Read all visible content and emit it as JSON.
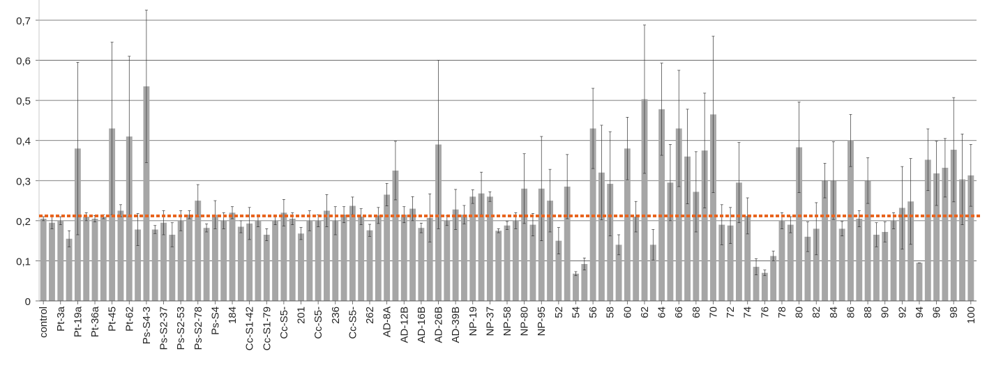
{
  "chart_data": {
    "type": "bar",
    "categories": [
      "control",
      null,
      "Pt-3a",
      null,
      "Pt-19a",
      null,
      "Pt-36a",
      null,
      "Pt-45",
      null,
      "Pt-62",
      null,
      "Ps-S4-3",
      null,
      "Ps-S2-37",
      null,
      "Ps-S2-53",
      null,
      "Ps-S2-78",
      null,
      "Ps-S4",
      null,
      "184",
      null,
      "Cc-S1-42",
      null,
      "Cc-S1-79",
      null,
      "Cc-S5-",
      null,
      "201",
      null,
      "Cc-S5-",
      null,
      "236",
      null,
      "Cc-S5-",
      null,
      "262",
      null,
      "AD-8A",
      null,
      "AD-12B",
      null,
      "AD-16B",
      null,
      "AD-26B",
      null,
      "AD-39B",
      null,
      "NP-19",
      null,
      "NP-37",
      null,
      "NP-58",
      null,
      "NP-80",
      null,
      "NP-95",
      null,
      "52",
      null,
      "54",
      null,
      "56",
      null,
      "58",
      null,
      "60",
      null,
      "62",
      null,
      "64",
      null,
      "66",
      null,
      "68",
      null,
      "70",
      null,
      "72",
      null,
      "74",
      null,
      "76",
      null,
      "78",
      null,
      "80",
      null,
      "82",
      null,
      "84",
      null,
      "86",
      null,
      "88",
      null,
      "90",
      null,
      "92",
      null,
      "94",
      null,
      "96",
      null,
      "98",
      null,
      "100"
    ],
    "values": [
      0.205,
      0.195,
      0.2,
      0.155,
      0.38,
      0.21,
      0.205,
      0.21,
      0.43,
      0.225,
      0.41,
      0.178,
      0.535,
      0.178,
      0.195,
      0.165,
      0.2,
      0.215,
      0.25,
      0.182,
      0.215,
      0.2,
      0.22,
      0.185,
      0.193,
      0.2,
      0.165,
      0.2,
      0.22,
      0.205,
      0.168,
      0.2,
      0.2,
      0.225,
      0.2,
      0.215,
      0.237,
      0.21,
      0.176,
      0.213,
      0.265,
      0.325,
      0.215,
      0.23,
      0.182,
      0.207,
      0.39,
      0.2,
      0.228,
      0.215,
      0.26,
      0.268,
      0.26,
      0.175,
      0.188,
      0.2,
      0.28,
      0.19,
      0.28,
      0.25,
      0.15,
      0.285,
      0.068,
      0.092,
      0.43,
      0.32,
      0.292,
      0.14,
      0.38,
      0.21,
      0.503,
      0.14,
      0.478,
      0.295,
      0.43,
      0.36,
      0.272,
      0.375,
      0.465,
      0.19,
      0.188,
      0.295,
      0.212,
      0.085,
      0.07,
      0.112,
      0.2,
      0.19,
      0.383,
      0.16,
      0.18,
      0.3,
      0.3,
      0.18,
      0.4,
      0.205,
      0.3,
      0.165,
      0.172,
      0.2,
      0.232,
      0.248,
      0.095,
      0.352,
      0.318,
      0.332,
      0.377,
      0.303,
      0.313
    ],
    "errors": [
      0.005,
      0.015,
      0.01,
      0.02,
      0.215,
      0.01,
      0.008,
      0.005,
      0.215,
      0.015,
      0.2,
      0.04,
      0.19,
      0.01,
      0.03,
      0.03,
      0.025,
      0.01,
      0.04,
      0.01,
      0.035,
      0.02,
      0.015,
      0.015,
      0.04,
      0.015,
      0.015,
      0.01,
      0.033,
      0.015,
      0.015,
      0.025,
      0.015,
      0.04,
      0.035,
      0.02,
      0.022,
      0.02,
      0.015,
      0.02,
      0.028,
      0.073,
      0.02,
      0.03,
      0.012,
      0.06,
      0.21,
      0.012,
      0.05,
      0.023,
      0.017,
      0.053,
      0.012,
      0.005,
      0.01,
      0.02,
      0.087,
      0.028,
      0.13,
      0.078,
      0.033,
      0.08,
      0.005,
      0.015,
      0.1,
      0.118,
      0.13,
      0.025,
      0.078,
      0.038,
      0.185,
      0.038,
      0.115,
      0.095,
      0.145,
      0.118,
      0.1,
      0.143,
      0.195,
      0.05,
      0.045,
      0.1,
      0.045,
      0.02,
      0.007,
      0.012,
      0.02,
      0.02,
      0.113,
      0.037,
      0.065,
      0.043,
      0.097,
      0.018,
      0.065,
      0.02,
      0.057,
      0.03,
      0.025,
      0.02,
      0.103,
      0.107,
      0,
      0.077,
      0.08,
      0.073,
      0.13,
      0.113,
      0.077
    ],
    "color": "#a6a6a6",
    "reference_line": {
      "value": 0.212,
      "color": "#e8641e"
    },
    "ylim": [
      0,
      0.75
    ],
    "yticks": [
      0,
      {
        "value": 0.1,
        "label": "0,1"
      },
      {
        "value": 0.2,
        "label": "0,2"
      },
      {
        "value": 0.3,
        "label": "0,3"
      },
      {
        "value": 0.4,
        "label": "0,4"
      },
      {
        "value": 0.5,
        "label": "0,5"
      },
      {
        "value": 0.6,
        "label": "0,6"
      },
      {
        "value": 0.7,
        "label": "0,7"
      }
    ],
    "grid": true
  }
}
